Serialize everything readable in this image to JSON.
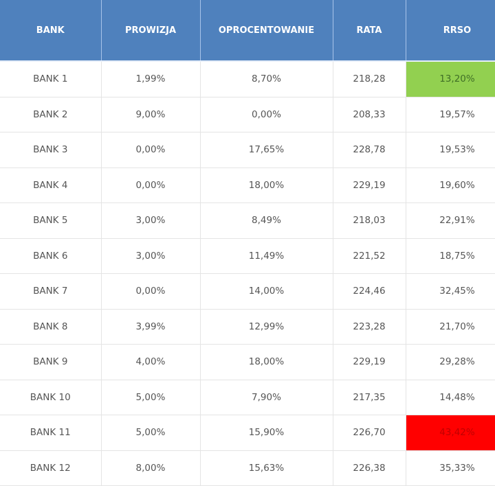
{
  "table": {
    "headers": [
      "BANK",
      "PROWIZJA",
      "OPROCENTOWANIE",
      "RATA",
      "RRSO"
    ],
    "rows": [
      {
        "bank": "BANK  1",
        "prowizja": "1,99%",
        "oprocentowanie": "8,70%",
        "rata": "218,28",
        "rrso": "13,20%",
        "highlight": "good"
      },
      {
        "bank": "BANK  2",
        "prowizja": "9,00%",
        "oprocentowanie": "0,00%",
        "rata": "208,33",
        "rrso": "19,57%",
        "highlight": ""
      },
      {
        "bank": "BANK 3",
        "prowizja": "0,00%",
        "oprocentowanie": "17,65%",
        "rata": "228,78",
        "rrso": "19,53%",
        "highlight": ""
      },
      {
        "bank": "BANK 4",
        "prowizja": "0,00%",
        "oprocentowanie": "18,00%",
        "rata": "229,19",
        "rrso": "19,60%",
        "highlight": ""
      },
      {
        "bank": "BANK 5",
        "prowizja": "3,00%",
        "oprocentowanie": "8,49%",
        "rata": "218,03",
        "rrso": "22,91%",
        "highlight": ""
      },
      {
        "bank": "BANK 6",
        "prowizja": "3,00%",
        "oprocentowanie": "11,49%",
        "rata": "221,52",
        "rrso": "18,75%",
        "highlight": ""
      },
      {
        "bank": "BANK 7",
        "prowizja": "0,00%",
        "oprocentowanie": "14,00%",
        "rata": "224,46",
        "rrso": "32,45%",
        "highlight": ""
      },
      {
        "bank": "BANK 8",
        "prowizja": "3,99%",
        "oprocentowanie": "12,99%",
        "rata": "223,28",
        "rrso": "21,70%",
        "highlight": ""
      },
      {
        "bank": "BANK 9",
        "prowizja": "4,00%",
        "oprocentowanie": "18,00%",
        "rata": "229,19",
        "rrso": "29,28%",
        "highlight": ""
      },
      {
        "bank": "BANK 10",
        "prowizja": "5,00%",
        "oprocentowanie": "7,90%",
        "rata": "217,35",
        "rrso": "14,48%",
        "highlight": ""
      },
      {
        "bank": "BANK 11",
        "prowizja": "5,00%",
        "oprocentowanie": "15,90%",
        "rata": "226,70",
        "rrso": "43,42%",
        "highlight": "bad"
      },
      {
        "bank": "BANK 12",
        "prowizja": "8,00%",
        "oprocentowanie": "15,63%",
        "rata": "226,38",
        "rrso": "35,33%",
        "highlight": ""
      }
    ]
  },
  "colors": {
    "header_bg": "#4f81bd",
    "header_text": "#ffffff",
    "best_rrso": "#92d050",
    "worst_rrso": "#ff0000",
    "grid_line": "#e4e4e4",
    "cell_text": "#555555"
  }
}
